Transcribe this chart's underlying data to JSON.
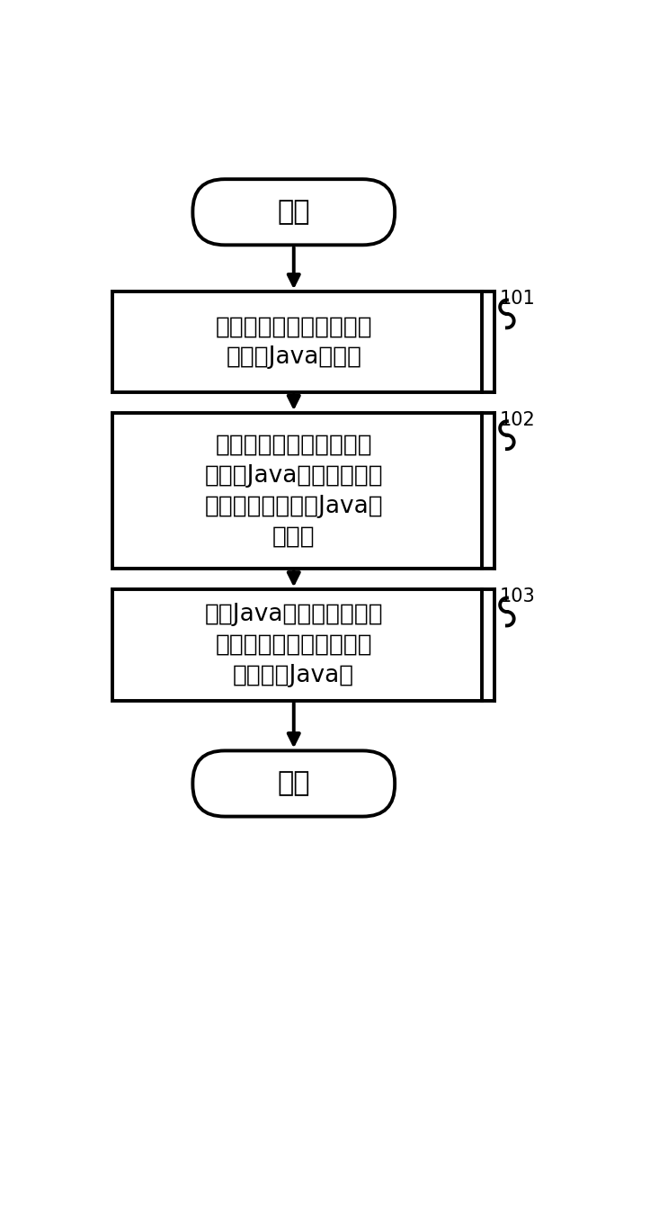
{
  "bg_color": "#ffffff",
  "line_color": "#000000",
  "text_color": "#000000",
  "start_text": "开始",
  "end_text": "结束",
  "box1_text": "记录应用每次启动后实际\n分配的Java堆大小",
  "box2_text": "根据已记录的应用的实际\n分配的Java堆大小计算该\n应用下一次启动的Java堆\n预测値",
  "box3_text": "根据Java堆预测値，在应\n用下一次启动时为该应用\n初始分配Java堆",
  "label101": "101",
  "label102": "102",
  "label103": "103",
  "font_size_box": 19,
  "font_size_terminal": 22,
  "font_size_label": 15
}
